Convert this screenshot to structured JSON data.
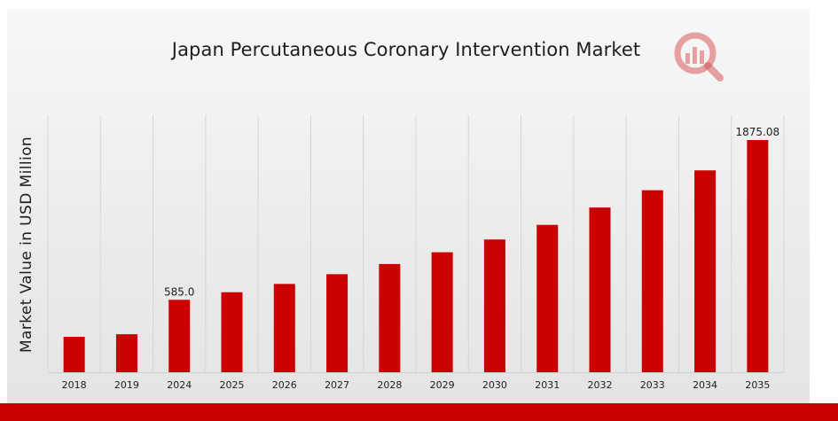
{
  "colors": {
    "bar": "#cc0000",
    "accent_band": "#cc0000",
    "grid": "#d6d6d6",
    "text": "#1e1e1e",
    "logo": "#d85a5a"
  },
  "icons": {
    "logo": "magnifier-bar-chart-logo-icon"
  },
  "chart_data": {
    "type": "bar",
    "title": "Japan Percutaneous Coronary Intervention Market",
    "xlabel": "",
    "ylabel": "Market Value in USD Million",
    "categories": [
      "2018",
      "2019",
      "2024",
      "2025",
      "2026",
      "2027",
      "2028",
      "2029",
      "2030",
      "2031",
      "2032",
      "2033",
      "2034",
      "2035"
    ],
    "values": [
      286,
      307,
      585.0,
      646,
      713,
      792,
      874,
      969,
      1072,
      1190,
      1330,
      1470,
      1630,
      1875.08
    ],
    "data_labels": [
      {
        "category": "2024",
        "label": "585.0"
      },
      {
        "category": "2035",
        "label": "1875.08"
      }
    ],
    "ylim": [
      0,
      2000
    ],
    "grid": "vertical",
    "legend": "none"
  }
}
